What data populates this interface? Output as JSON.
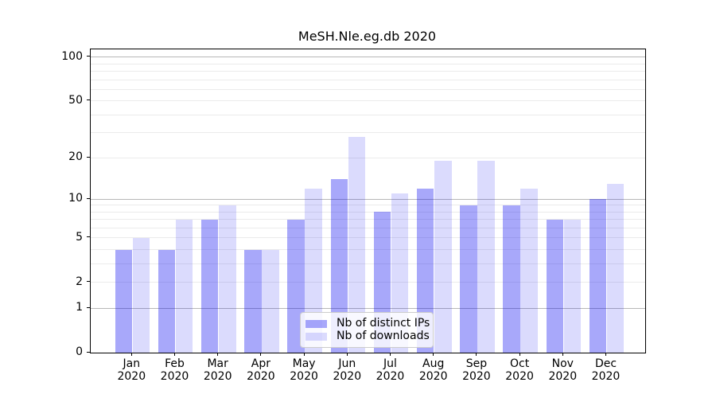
{
  "chart_data": {
    "type": "bar",
    "title": "MeSH.Nle.eg.db 2020",
    "categories": [
      "Jan",
      "Feb",
      "Mar",
      "Apr",
      "May",
      "Jun",
      "Jul",
      "Aug",
      "Sep",
      "Oct",
      "Nov",
      "Dec"
    ],
    "x_tick_second_line": "2020",
    "series": [
      {
        "name": "Nb of distinct IPs",
        "color": "rgba(0,0,240,0.34)",
        "values": [
          4,
          4,
          7,
          4,
          7,
          14,
          8,
          12,
          9,
          9,
          7,
          10
        ]
      },
      {
        "name": "Nb of downloads",
        "color": "rgba(0,0,240,0.14)",
        "values": [
          5,
          7,
          9,
          4,
          12,
          28,
          11,
          19,
          19,
          12,
          7,
          13
        ]
      }
    ],
    "yscale": "log1p",
    "ylim": [
      0,
      113
    ],
    "yticks": [
      0,
      1,
      2,
      5,
      10,
      20,
      50,
      100
    ],
    "yticks_major_grid": [
      1,
      10,
      100
    ],
    "yticks_minor_grid": [
      2,
      3,
      4,
      5,
      6,
      7,
      8,
      9,
      20,
      30,
      40,
      50,
      60,
      70,
      80,
      90
    ],
    "grid": true,
    "legend_position": "lower center",
    "colors": {
      "axis": "#000000",
      "grid_major": "#b8b8b8",
      "grid_minor": "#ebebeb",
      "background": "#ffffff"
    }
  }
}
